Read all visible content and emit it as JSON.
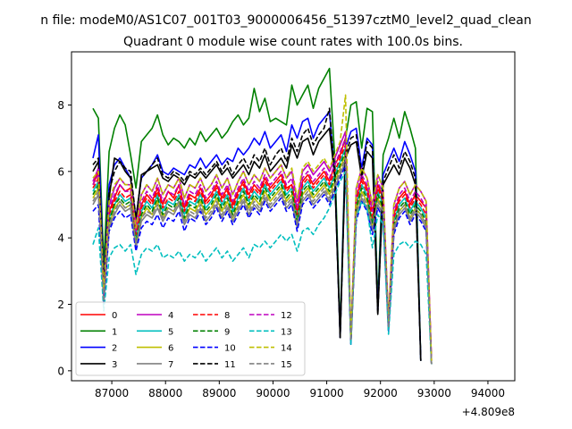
{
  "chart_data": {
    "type": "line",
    "suptitle": "n file: modeM0/AS1C07_001T03_9000006456_51397cztM0_level2_quad_clean",
    "title": "Quadrant 0 module wise count rates with 100.0s bins.",
    "xlabel": "",
    "ylabel": "",
    "x_offset_label": "+4.809e8",
    "xlim": [
      86250,
      94500
    ],
    "ylim": [
      -0.3,
      9.6
    ],
    "xticks": [
      87000,
      88000,
      89000,
      90000,
      91000,
      92000,
      93000,
      94000
    ],
    "xtick_labels": [
      "87000",
      "88000",
      "89000",
      "90000",
      "91000",
      "92000",
      "93000",
      "94000"
    ],
    "yticks": [
      0,
      2,
      4,
      6,
      8
    ],
    "ytick_labels": [
      "0",
      "2",
      "4",
      "6",
      "8"
    ],
    "grid": false,
    "legend_placement": "lower-left",
    "x_start": 86650,
    "x_step": 100,
    "series": [
      {
        "name": "0",
        "color": "#ff0000",
        "dash": false,
        "values": [
          5.6,
          6.0,
          2.4,
          4.8,
          5.2,
          5.6,
          5.4,
          5.5,
          4.2,
          5.0,
          5.3,
          5.1,
          5.5,
          5.0,
          5.4,
          5.2,
          5.6,
          4.9,
          5.3,
          5.2,
          5.5,
          5.1,
          5.3,
          5.6,
          5.2,
          5.5,
          5.0,
          5.4,
          5.7,
          5.3,
          5.6,
          5.4,
          5.8,
          5.5,
          5.7,
          5.9,
          5.5,
          5.6,
          4.8,
          5.7,
          5.9,
          5.6,
          5.8,
          6.0,
          5.7,
          6.2,
          6.5,
          7.0,
          1.0,
          5.2,
          5.8,
          5.5,
          4.8,
          5.6,
          5.2,
          1.4,
          4.7,
          5.2,
          5.4,
          5.0,
          5.3,
          5.1,
          4.9,
          0.3
        ]
      },
      {
        "name": "1",
        "color": "#008000",
        "dash": false,
        "values": [
          7.9,
          7.6,
          3.2,
          6.6,
          7.3,
          7.7,
          7.4,
          6.5,
          5.5,
          6.9,
          7.1,
          7.3,
          7.7,
          7.1,
          6.8,
          7.0,
          6.9,
          6.7,
          7.0,
          6.8,
          7.2,
          6.9,
          7.1,
          7.3,
          7.0,
          7.2,
          7.5,
          7.7,
          7.4,
          7.6,
          8.5,
          7.8,
          8.2,
          7.5,
          7.6,
          7.5,
          7.4,
          8.6,
          8.0,
          8.3,
          8.6,
          7.9,
          8.5,
          8.8,
          9.1,
          6.4,
          1.2,
          7.0,
          8.0,
          8.1,
          6.7,
          7.9,
          7.8,
          2.0,
          6.5,
          7.0,
          7.6,
          7.0,
          7.8,
          7.3,
          6.7,
          0.3
        ]
      },
      {
        "name": "2",
        "color": "#0000ff",
        "dash": false,
        "values": [
          6.4,
          7.1,
          2.6,
          5.6,
          6.2,
          6.4,
          6.1,
          5.8,
          4.6,
          5.8,
          6.0,
          6.2,
          6.5,
          6.0,
          5.9,
          6.1,
          6.0,
          5.9,
          6.2,
          6.1,
          6.4,
          6.1,
          6.3,
          6.5,
          6.2,
          6.4,
          6.3,
          6.7,
          6.5,
          6.7,
          7.0,
          6.8,
          7.2,
          6.7,
          6.9,
          7.1,
          6.6,
          7.4,
          7.0,
          7.5,
          7.6,
          7.0,
          7.4,
          7.6,
          7.8,
          5.9,
          1.0,
          6.7,
          7.2,
          7.3,
          6.1,
          7.0,
          6.8,
          1.8,
          5.9,
          6.3,
          6.7,
          6.3,
          6.9,
          6.5,
          6.0,
          0.3
        ]
      },
      {
        "name": "3",
        "color": "#000000",
        "dash": false,
        "values": [
          6.0,
          6.3,
          2.6,
          5.2,
          6.4,
          6.3,
          6.0,
          5.8,
          4.5,
          5.9,
          6.0,
          6.1,
          6.2,
          5.8,
          5.7,
          5.9,
          5.8,
          5.6,
          5.9,
          5.8,
          6.0,
          5.8,
          6.0,
          6.2,
          5.9,
          6.1,
          5.8,
          6.0,
          6.2,
          5.9,
          6.3,
          6.1,
          6.5,
          6.0,
          6.2,
          6.4,
          6.1,
          6.8,
          6.4,
          6.9,
          7.0,
          6.5,
          6.9,
          7.1,
          7.3,
          5.8,
          1.0,
          6.4,
          6.8,
          6.9,
          5.8,
          6.6,
          6.4,
          1.7,
          5.6,
          5.9,
          6.2,
          5.9,
          6.4,
          6.1,
          5.6,
          0.3
        ]
      },
      {
        "name": "4",
        "color": "#bf00bf",
        "dash": false,
        "values": [
          5.7,
          6.1,
          2.4,
          5.0,
          5.5,
          5.8,
          5.6,
          5.6,
          4.4,
          5.3,
          5.6,
          5.4,
          5.8,
          5.3,
          5.6,
          5.5,
          5.8,
          5.2,
          5.6,
          5.5,
          5.8,
          5.4,
          5.6,
          5.9,
          5.5,
          5.8,
          5.3,
          5.7,
          6.0,
          5.6,
          5.9,
          5.7,
          6.1,
          5.8,
          6.0,
          6.2,
          5.8,
          6.0,
          5.1,
          6.0,
          6.2,
          5.9,
          6.1,
          6.3,
          6.0,
          6.4,
          6.8,
          7.2,
          1.0,
          5.5,
          6.1,
          5.8,
          5.0,
          5.9,
          5.5,
          1.5,
          5.0,
          5.5,
          5.7,
          5.3,
          5.6,
          5.4,
          5.1,
          0.3
        ]
      },
      {
        "name": "5",
        "color": "#00bfbf",
        "dash": false,
        "values": [
          5.4,
          5.7,
          2.2,
          4.6,
          5.0,
          5.3,
          5.1,
          5.2,
          4.0,
          4.8,
          5.1,
          4.9,
          5.3,
          4.8,
          5.1,
          5.0,
          5.3,
          4.7,
          5.1,
          5.0,
          5.3,
          4.9,
          5.1,
          5.4,
          5.0,
          5.3,
          4.8,
          5.2,
          5.5,
          5.1,
          5.4,
          5.2,
          5.6,
          5.3,
          5.5,
          5.7,
          5.3,
          5.5,
          4.6,
          5.5,
          5.7,
          5.4,
          5.6,
          5.8,
          5.5,
          5.9,
          6.3,
          6.7,
          0.9,
          5.0,
          5.6,
          5.3,
          4.5,
          5.4,
          5.0,
          1.3,
          4.5,
          5.0,
          5.2,
          4.8,
          5.1,
          4.9,
          4.6,
          0.2
        ]
      },
      {
        "name": "6",
        "color": "#bfbf00",
        "dash": false,
        "values": [
          5.2,
          5.5,
          2.1,
          4.4,
          4.9,
          5.1,
          4.9,
          5.0,
          3.8,
          4.6,
          4.9,
          4.7,
          5.1,
          4.6,
          4.9,
          4.8,
          5.1,
          4.5,
          4.9,
          4.8,
          5.1,
          4.7,
          4.9,
          5.2,
          4.8,
          5.1,
          4.6,
          5.0,
          5.3,
          4.9,
          5.2,
          5.0,
          5.4,
          5.1,
          5.3,
          5.5,
          5.1,
          5.3,
          4.4,
          5.3,
          5.5,
          5.2,
          5.4,
          5.6,
          5.3,
          5.7,
          6.1,
          6.5,
          0.9,
          4.8,
          5.4,
          5.1,
          4.3,
          5.2,
          4.8,
          1.3,
          4.3,
          4.8,
          5.0,
          4.6,
          4.9,
          4.7,
          4.4,
          0.2
        ]
      },
      {
        "name": "7",
        "color": "#808080",
        "dash": false,
        "values": [
          5.0,
          5.3,
          2.0,
          4.3,
          4.7,
          5.0,
          4.8,
          4.9,
          3.7,
          4.5,
          4.7,
          4.6,
          4.9,
          4.5,
          4.8,
          4.7,
          5.0,
          4.4,
          4.7,
          4.6,
          4.9,
          4.5,
          4.7,
          5.0,
          4.6,
          4.9,
          4.5,
          4.8,
          5.1,
          4.7,
          5.0,
          4.8,
          5.2,
          4.9,
          5.1,
          5.3,
          4.9,
          5.1,
          4.3,
          5.1,
          5.3,
          5.0,
          5.2,
          5.4,
          5.1,
          5.5,
          5.9,
          6.3,
          0.8,
          4.6,
          5.2,
          4.9,
          4.2,
          5.0,
          4.7,
          1.2,
          4.2,
          4.7,
          4.9,
          4.5,
          4.8,
          4.6,
          4.3,
          0.2
        ]
      },
      {
        "name": "8",
        "color": "#ff0000",
        "dash": true,
        "values": [
          5.5,
          5.8,
          2.3,
          4.7,
          5.1,
          5.4,
          5.2,
          5.3,
          4.1,
          4.9,
          5.2,
          5.0,
          5.4,
          4.9,
          5.2,
          5.1,
          5.4,
          4.8,
          5.2,
          5.1,
          5.4,
          5.0,
          5.2,
          5.5,
          5.1,
          5.4,
          4.9,
          5.3,
          5.6,
          5.2,
          5.5,
          5.3,
          5.7,
          5.4,
          5.6,
          5.8,
          5.4,
          5.6,
          4.7,
          5.6,
          5.8,
          5.5,
          5.7,
          5.9,
          5.6,
          6.0,
          6.4,
          6.8,
          0.9,
          5.1,
          5.7,
          5.4,
          4.6,
          5.5,
          5.1,
          1.4,
          4.6,
          5.1,
          5.3,
          4.9,
          5.2,
          5.0,
          4.7,
          0.2
        ]
      },
      {
        "name": "9",
        "color": "#008000",
        "dash": true,
        "values": [
          5.3,
          5.6,
          2.2,
          4.5,
          5.0,
          5.2,
          5.0,
          5.1,
          3.9,
          4.7,
          5.0,
          4.8,
          5.2,
          4.7,
          5.0,
          4.9,
          5.2,
          4.6,
          5.0,
          4.9,
          5.2,
          4.8,
          5.0,
          5.3,
          4.9,
          5.2,
          4.7,
          5.1,
          5.4,
          5.0,
          5.3,
          5.1,
          5.5,
          5.2,
          5.4,
          5.6,
          5.2,
          5.4,
          4.5,
          5.4,
          5.6,
          5.3,
          5.5,
          5.7,
          5.4,
          5.8,
          6.2,
          6.6,
          0.9,
          4.9,
          5.5,
          5.2,
          4.4,
          5.3,
          4.9,
          1.3,
          4.4,
          4.9,
          5.1,
          4.7,
          5.0,
          4.8,
          4.5,
          0.2
        ]
      },
      {
        "name": "10",
        "color": "#0000ff",
        "dash": true,
        "values": [
          4.8,
          5.0,
          2.0,
          4.2,
          4.6,
          4.8,
          4.6,
          4.7,
          3.6,
          4.3,
          4.5,
          4.4,
          4.7,
          4.3,
          4.6,
          4.5,
          4.8,
          4.2,
          4.6,
          4.5,
          4.8,
          4.4,
          4.6,
          4.9,
          4.5,
          4.8,
          4.4,
          4.7,
          5.0,
          4.6,
          4.9,
          4.7,
          5.1,
          4.8,
          5.0,
          5.2,
          4.8,
          5.0,
          4.2,
          5.0,
          5.2,
          4.9,
          5.1,
          5.3,
          5.0,
          5.4,
          5.8,
          6.2,
          0.8,
          4.5,
          5.1,
          4.8,
          4.1,
          4.9,
          4.6,
          1.2,
          4.1,
          4.6,
          4.8,
          4.4,
          4.7,
          4.5,
          4.2,
          0.2
        ]
      },
      {
        "name": "11",
        "color": "#000000",
        "dash": true,
        "values": [
          6.2,
          6.4,
          2.5,
          5.4,
          6.0,
          6.3,
          6.1,
          6.0,
          4.6,
          5.8,
          6.0,
          6.2,
          6.4,
          5.9,
          5.8,
          6.0,
          5.9,
          5.7,
          6.0,
          5.9,
          6.1,
          5.9,
          6.1,
          6.3,
          6.0,
          6.3,
          5.9,
          6.2,
          6.4,
          6.1,
          6.5,
          6.3,
          6.7,
          6.2,
          6.5,
          6.7,
          6.3,
          7.0,
          6.6,
          7.1,
          7.3,
          6.8,
          7.1,
          7.3,
          7.9,
          5.9,
          1.0,
          6.5,
          7.0,
          7.1,
          5.9,
          6.9,
          6.7,
          1.7,
          5.7,
          6.1,
          6.5,
          6.1,
          6.6,
          6.3,
          5.8,
          0.3
        ]
      },
      {
        "name": "12",
        "color": "#bf00bf",
        "dash": true,
        "values": [
          5.6,
          5.9,
          2.3,
          4.9,
          5.3,
          5.6,
          5.4,
          5.4,
          4.2,
          5.1,
          5.4,
          5.2,
          5.6,
          5.1,
          5.4,
          5.3,
          5.6,
          5.0,
          5.4,
          5.3,
          5.6,
          5.2,
          5.4,
          5.7,
          5.3,
          5.6,
          5.1,
          5.5,
          5.8,
          5.4,
          5.7,
          5.5,
          5.9,
          5.6,
          5.8,
          6.0,
          5.6,
          5.8,
          4.9,
          5.8,
          6.0,
          5.7,
          5.9,
          6.1,
          5.8,
          6.2,
          6.6,
          7.0,
          1.0,
          5.3,
          5.9,
          5.6,
          4.8,
          5.7,
          5.3,
          1.4,
          4.8,
          5.3,
          5.5,
          5.1,
          5.4,
          5.2,
          4.9,
          0.3
        ]
      },
      {
        "name": "13",
        "color": "#00bfbf",
        "dash": true,
        "values": [
          3.8,
          4.3,
          1.8,
          3.4,
          3.7,
          3.8,
          3.6,
          3.8,
          2.9,
          3.5,
          3.7,
          3.6,
          3.8,
          3.4,
          3.5,
          3.4,
          3.6,
          3.3,
          3.5,
          3.4,
          3.6,
          3.3,
          3.5,
          3.7,
          3.4,
          3.6,
          3.3,
          3.5,
          3.7,
          3.4,
          3.8,
          3.7,
          3.9,
          3.7,
          3.9,
          4.1,
          3.9,
          4.1,
          3.6,
          4.2,
          4.3,
          4.1,
          4.4,
          4.6,
          4.9,
          5.3,
          5.7,
          6.0,
          0.8,
          4.6,
          5.1,
          4.9,
          3.7,
          4.7,
          4.4,
          1.1,
          3.5,
          3.8,
          3.9,
          3.7,
          3.9,
          3.8,
          3.5,
          0.2
        ]
      },
      {
        "name": "14",
        "color": "#bfbf00",
        "dash": true,
        "values": [
          5.8,
          6.0,
          2.4,
          5.1,
          5.6,
          5.8,
          5.6,
          5.6,
          4.3,
          5.3,
          5.6,
          5.4,
          5.8,
          5.3,
          5.6,
          5.5,
          5.8,
          5.2,
          5.6,
          5.5,
          5.8,
          5.4,
          5.6,
          5.9,
          5.5,
          5.8,
          5.3,
          5.7,
          6.0,
          5.6,
          5.9,
          5.7,
          6.1,
          5.8,
          6.0,
          6.2,
          5.8,
          6.1,
          5.2,
          6.1,
          6.3,
          6.0,
          6.2,
          6.4,
          6.1,
          6.5,
          6.9,
          8.3,
          1.0,
          5.5,
          6.1,
          5.8,
          5.0,
          5.9,
          5.5,
          1.5,
          5.0,
          5.5,
          5.7,
          5.3,
          5.6,
          5.4,
          5.1,
          0.3
        ]
      },
      {
        "name": "15",
        "color": "#808080",
        "dash": true,
        "values": [
          5.1,
          5.4,
          2.1,
          4.4,
          4.8,
          5.1,
          4.9,
          5.0,
          3.8,
          4.6,
          4.8,
          4.7,
          5.0,
          4.6,
          4.9,
          4.8,
          5.1,
          4.5,
          4.8,
          4.7,
          5.0,
          4.6,
          4.8,
          5.1,
          4.7,
          5.0,
          4.6,
          4.9,
          5.2,
          4.8,
          5.1,
          4.9,
          5.3,
          5.0,
          5.2,
          5.4,
          5.0,
          5.2,
          4.4,
          5.2,
          5.4,
          5.1,
          5.3,
          5.5,
          5.2,
          5.6,
          6.0,
          6.4,
          0.9,
          4.7,
          5.3,
          5.0,
          4.3,
          5.1,
          4.8,
          1.3,
          4.3,
          4.8,
          5.0,
          4.6,
          4.9,
          4.7,
          4.4,
          0.2
        ]
      }
    ]
  }
}
